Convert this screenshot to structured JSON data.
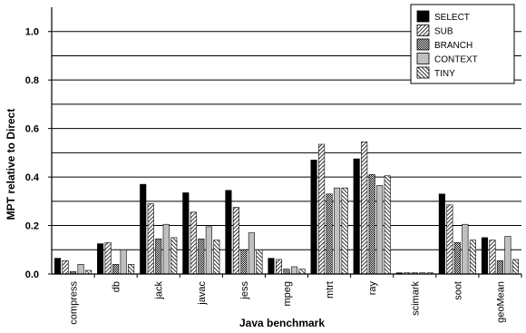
{
  "chart_data": {
    "type": "bar",
    "xlabel": "Java benchmark",
    "ylabel": "MPT relative to Direct",
    "ylim": [
      0,
      1.1
    ],
    "yticks": [
      "0.0",
      "0.2",
      "0.4",
      "0.6",
      "0.8",
      "1.0"
    ],
    "grid": true,
    "legend_position": "top-right",
    "categories": [
      "compress",
      "db",
      "jack",
      "javac",
      "jess",
      "mpeg",
      "mtrt",
      "ray",
      "scimark",
      "soot",
      "geoMean"
    ],
    "series": [
      {
        "name": "SELECT",
        "fill": "#000000",
        "pattern": "solid",
        "values": [
          0.065,
          0.125,
          0.37,
          0.335,
          0.345,
          0.065,
          0.47,
          0.475,
          0.005,
          0.33,
          0.15
        ]
      },
      {
        "name": "SUB",
        "fill": "#000000",
        "pattern": "diagonal-hatch",
        "values": [
          0.055,
          0.13,
          0.29,
          0.255,
          0.275,
          0.06,
          0.535,
          0.545,
          0.005,
          0.285,
          0.14
        ]
      },
      {
        "name": "BRANCH",
        "fill": "#000000",
        "pattern": "checker",
        "values": [
          0.01,
          0.04,
          0.145,
          0.145,
          0.1,
          0.02,
          0.33,
          0.41,
          0.005,
          0.13,
          0.055
        ]
      },
      {
        "name": "CONTEXT",
        "fill": "#c0c0c0",
        "pattern": "solid",
        "values": [
          0.04,
          0.1,
          0.205,
          0.195,
          0.17,
          0.03,
          0.355,
          0.365,
          0.005,
          0.205,
          0.155
        ]
      },
      {
        "name": "TINY",
        "fill": "#000000",
        "pattern": "reverse-diagonal-hatch",
        "values": [
          0.015,
          0.04,
          0.15,
          0.14,
          0.1,
          0.02,
          0.355,
          0.405,
          0.005,
          0.14,
          0.06
        ]
      }
    ]
  }
}
